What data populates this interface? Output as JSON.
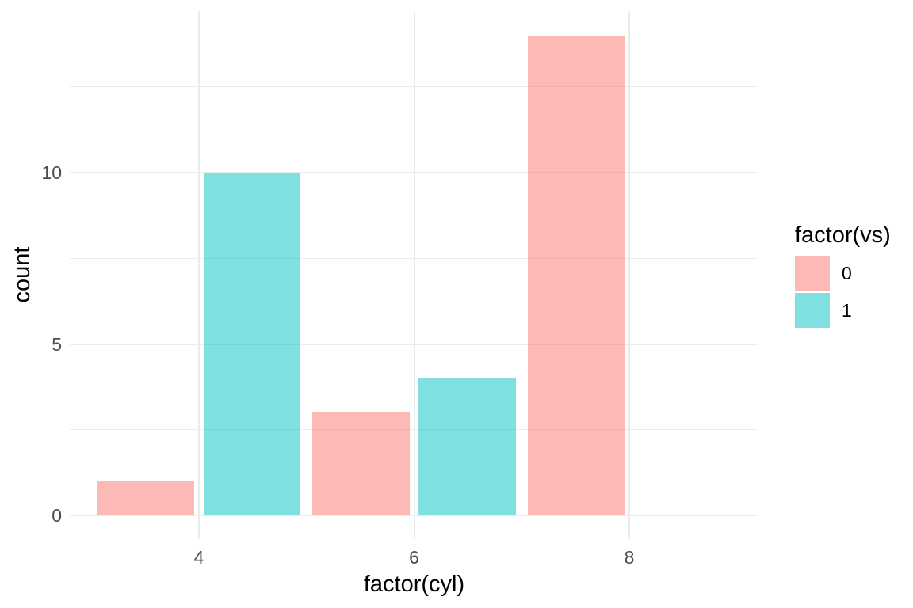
{
  "chart_data": {
    "type": "bar",
    "title": "",
    "xlabel": "factor(cyl)",
    "ylabel": "count",
    "categories": [
      "4",
      "6",
      "8"
    ],
    "series": [
      {
        "name": "0",
        "color": "#F8766D",
        "alpha": 0.5,
        "values": [
          1,
          3,
          14
        ]
      },
      {
        "name": "1",
        "color": "#00BFC4",
        "alpha": 0.5,
        "values": [
          10,
          4,
          0
        ]
      }
    ],
    "legend": {
      "title": "factor(vs)",
      "position": "right"
    },
    "y_axis": {
      "ticks": [
        0,
        5,
        10
      ],
      "minor_ticks": [
        2.5,
        7.5,
        12.5
      ],
      "range": [
        -0.7,
        14.7
      ]
    },
    "x_axis": {
      "ticks": [
        "4",
        "6",
        "8"
      ]
    },
    "style": {
      "background": "#FFFFFF",
      "grid_color": "#EBEBEB",
      "tick_label_color": "#4D4D4D",
      "title_color": "#000000"
    }
  }
}
